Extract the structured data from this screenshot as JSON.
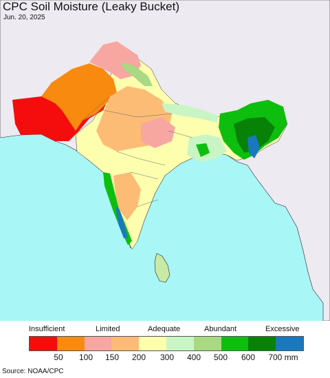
{
  "title": "CPC Soil Moisture (Leaky Bucket)",
  "date": "Jun. 20, 2025",
  "legend": {
    "categories": [
      "Insufficient",
      "Limited",
      "Adequate",
      "Abundant",
      "Excessive"
    ],
    "colors": [
      "#f50d0d",
      "#f78a0f",
      "#f7a6a2",
      "#fcbc76",
      "#fefeaf",
      "#c9f5c5",
      "#a9d983",
      "#0ebe0f",
      "#078207",
      "#1a78be"
    ],
    "ticks": [
      "50",
      "100",
      "150",
      "200",
      "300",
      "400",
      "500",
      "600",
      "700 mm"
    ]
  },
  "source": "Source: NOAA/CPC"
}
